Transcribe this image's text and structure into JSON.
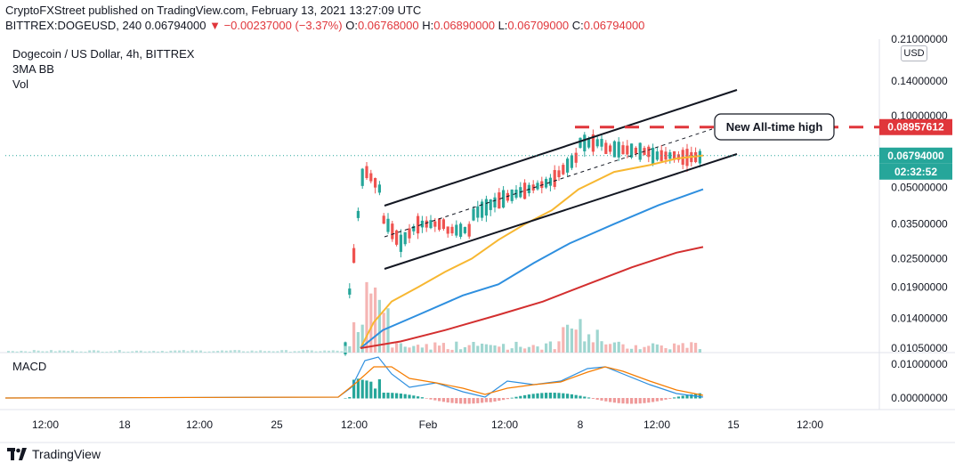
{
  "header": {
    "publisher_line": "CryptoFXStreet published on TradingView.com, February 13, 2021 13:27:09 UTC",
    "symbol_line": "BITTREX:DOGEUSD, 240",
    "last_price": "0.06794000",
    "change": "▼ −0.00237000 (−3.37%)",
    "o_label": "O:",
    "o_value": "0.06768000",
    "h_label": "H:",
    "h_value": "0.06890000",
    "l_label": "L:",
    "l_value": "0.06709000",
    "c_label": "C:",
    "c_value": "0.06794000"
  },
  "legend": {
    "title": "Dogecoin / US Dollar, 4h, BITTREX",
    "line2": "3MA BB",
    "line3": "Vol"
  },
  "macd_label": "MACD",
  "currency_chip": "USD",
  "branding": "TradingView",
  "chart_data": [
    {
      "type": "candlestick",
      "title": "Dogecoin / US Dollar, 4h, BITTREX",
      "y_axis": {
        "scale": "log",
        "tick_labels": [
          "0.21000000",
          "0.14000000",
          "0.10000000",
          "0.05000000",
          "0.03500000",
          "0.02500000",
          "0.01900000",
          "0.01400000",
          "0.01050000"
        ],
        "tick_values": [
          0.21,
          0.14,
          0.1,
          0.05,
          0.035,
          0.025,
          0.019,
          0.014,
          0.0105
        ],
        "range": [
          0.0105,
          0.21
        ]
      },
      "x_axis": {
        "tick_labels": [
          "12:00",
          "18",
          "12:00",
          "25",
          "12:00",
          "Feb",
          "12:00",
          "8",
          "12:00",
          "15",
          "12:00"
        ]
      },
      "price_labels": [
        {
          "text": "0.08957612",
          "color": "#e0363b",
          "value": 0.08957612
        },
        {
          "text": "0.06794000",
          "color": "#26a69a",
          "value": 0.06794
        },
        {
          "text": "02:32:52",
          "color": "#26a69a"
        }
      ],
      "annotations": [
        {
          "text": "New All-time high",
          "type": "callout"
        }
      ],
      "overlays": {
        "ascending_channel": true,
        "horizontal_resistance_color": "#e0363b",
        "ma_colors": [
          "#f7b731",
          "#2e8fdf",
          "#d32f2f"
        ]
      },
      "colors": {
        "up": "#26a69a",
        "down": "#ef5350"
      }
    },
    {
      "type": "line",
      "title": "MACD",
      "y_axis": {
        "tick_labels": [
          "0.01000000",
          "0.00000000"
        ],
        "tick_values": [
          0.01,
          0.0
        ]
      },
      "series_colors": [
        "#2e8fdf",
        "#f57c00"
      ]
    }
  ]
}
